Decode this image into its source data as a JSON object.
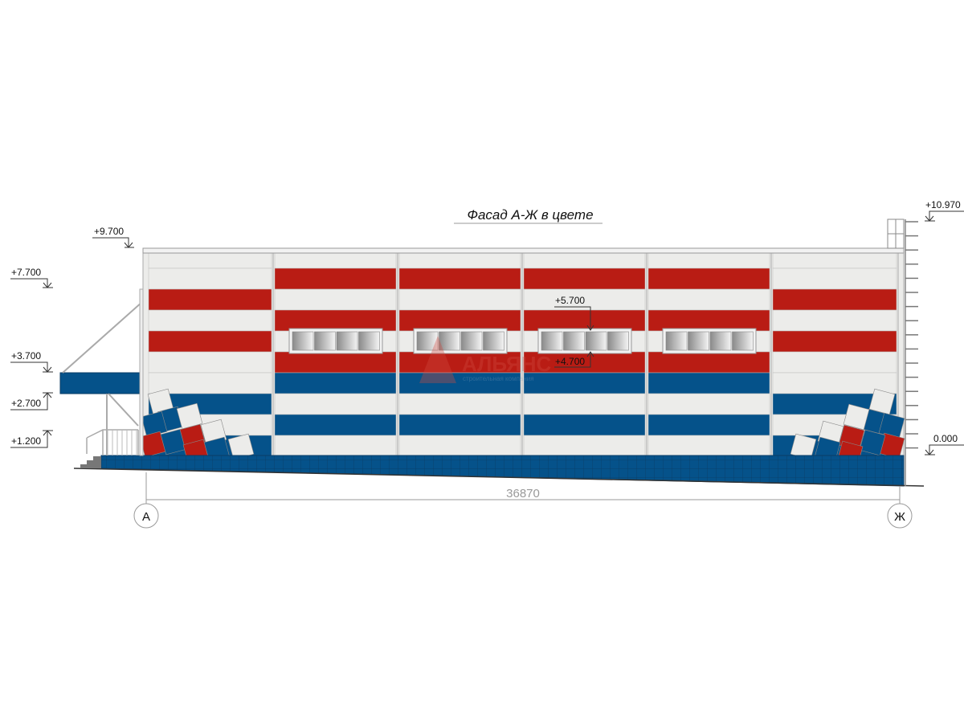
{
  "drawing": {
    "title": "Фасад А-Ж в цвете",
    "levels": {
      "l9700": "+9.700",
      "l7700": "+7.700",
      "l3700": "+3.700",
      "l2700": "+2.700",
      "l1200": "+1.200",
      "l5700": "+5.700",
      "l4700": "+4.700",
      "l10970": "+10.970",
      "l0000": "0.000"
    },
    "dimension": "36870",
    "axes": {
      "left": "А",
      "right": "Ж"
    },
    "watermark": {
      "brand": "АЛЬЯНС",
      "tagline": "строительная компания"
    }
  },
  "colors": {
    "red": "#b91c14",
    "blue": "#05528a",
    "white": "#ececea",
    "line": "#999999"
  }
}
